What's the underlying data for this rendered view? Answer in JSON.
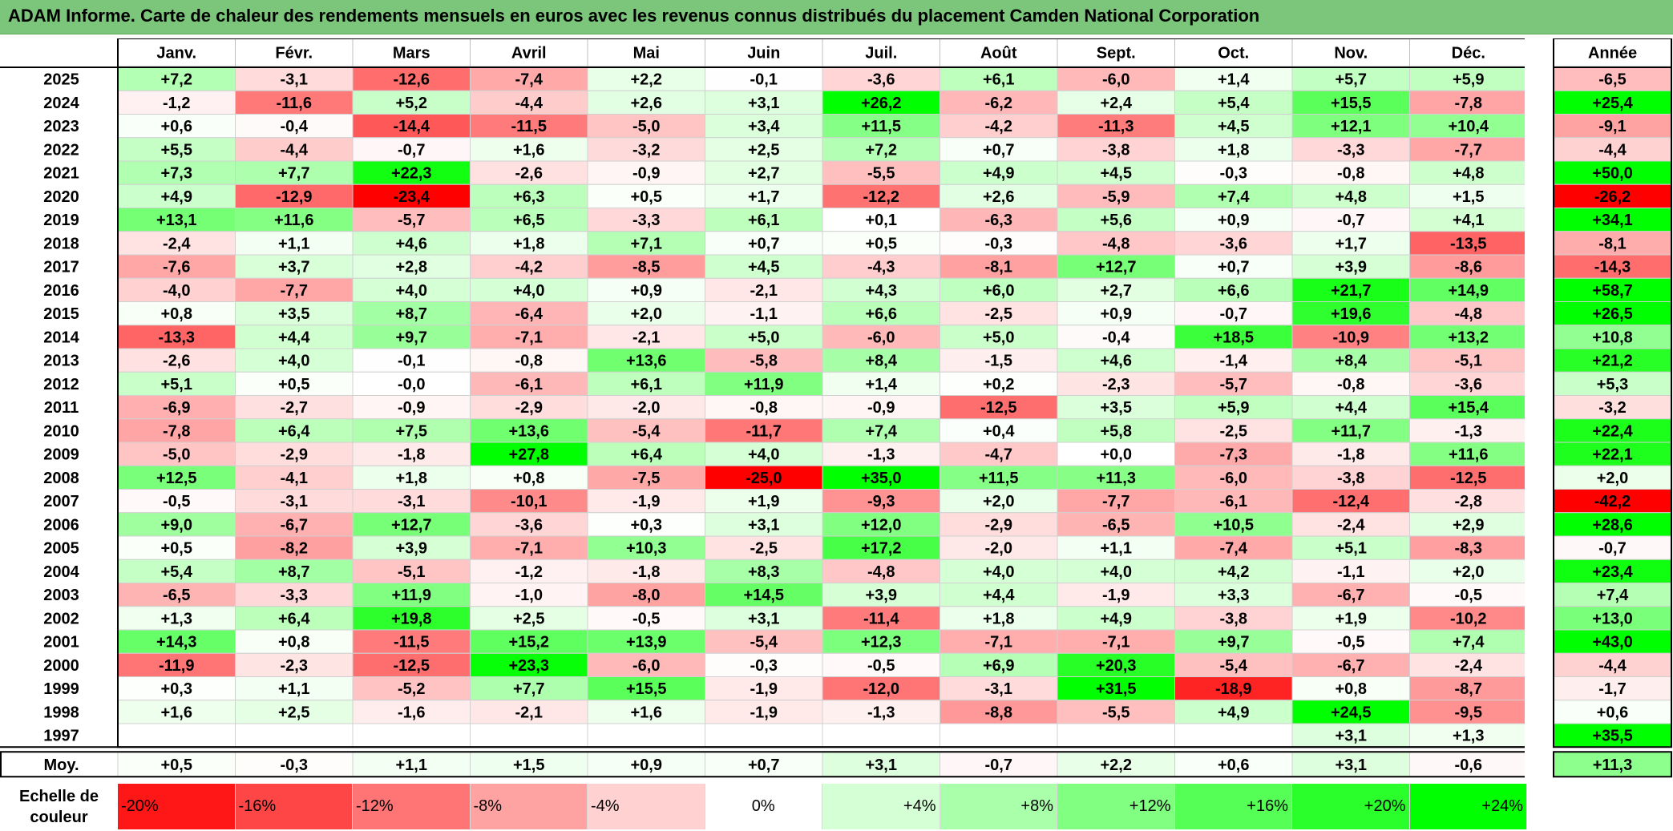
{
  "title": "ADAM Informe. Carte de chaleur des rendements mensuels en euros avec les revenus connus distribués du placement Camden National Corporation",
  "chart_data": {
    "type": "heatmap",
    "title": "ADAM Informe. Carte de chaleur des rendements mensuels en euros avec les revenus connus distribués du placement Camden National Corporation",
    "months": [
      "Janv.",
      "Févr.",
      "Mars",
      "Avril",
      "Mai",
      "Juin",
      "Juil.",
      "Août",
      "Sept.",
      "Oct.",
      "Nov.",
      "Déc."
    ],
    "year_header": "Année",
    "rows": [
      {
        "year": "2025",
        "values": [
          "+7,2",
          "-3,1",
          "-12,6",
          "-7,4",
          "+2,2",
          "-0,1",
          "-3,6",
          "+6,1",
          "-6,0",
          "+1,4",
          "+5,7",
          "+5,9"
        ],
        "annual": "-6,5"
      },
      {
        "year": "2024",
        "values": [
          "-1,2",
          "-11,6",
          "+5,2",
          "-4,4",
          "+2,6",
          "+3,1",
          "+26,2",
          "-6,2",
          "+2,4",
          "+5,4",
          "+15,5",
          "-7,8"
        ],
        "annual": "+25,4"
      },
      {
        "year": "2023",
        "values": [
          "+0,6",
          "-0,4",
          "-14,4",
          "-11,5",
          "-5,0",
          "+3,4",
          "+11,5",
          "-4,2",
          "-11,3",
          "+4,5",
          "+12,1",
          "+10,4"
        ],
        "annual": "-9,1"
      },
      {
        "year": "2022",
        "values": [
          "+5,5",
          "-4,4",
          "-0,7",
          "+1,6",
          "-3,2",
          "+2,5",
          "+7,2",
          "+0,7",
          "-3,8",
          "+1,8",
          "-3,3",
          "-7,7"
        ],
        "annual": "-4,4"
      },
      {
        "year": "2021",
        "values": [
          "+7,3",
          "+7,7",
          "+22,3",
          "-2,6",
          "-0,9",
          "+2,7",
          "-5,5",
          "+4,9",
          "+4,5",
          "-0,3",
          "-0,8",
          "+4,8"
        ],
        "annual": "+50,0"
      },
      {
        "year": "2020",
        "values": [
          "+4,9",
          "-12,9",
          "-23,4",
          "+6,3",
          "+0,5",
          "+1,7",
          "-12,2",
          "+2,6",
          "-5,9",
          "+7,4",
          "+4,8",
          "+1,5"
        ],
        "annual": "-26,2"
      },
      {
        "year": "2019",
        "values": [
          "+13,1",
          "+11,6",
          "-5,7",
          "+6,5",
          "-3,3",
          "+6,1",
          "+0,1",
          "-6,3",
          "+5,6",
          "+0,9",
          "-0,7",
          "+4,1"
        ],
        "annual": "+34,1"
      },
      {
        "year": "2018",
        "values": [
          "-2,4",
          "+1,1",
          "+4,6",
          "+1,8",
          "+7,1",
          "+0,7",
          "+0,5",
          "-0,3",
          "-4,8",
          "-3,6",
          "+1,7",
          "-13,5"
        ],
        "annual": "-8,1"
      },
      {
        "year": "2017",
        "values": [
          "-7,6",
          "+3,7",
          "+2,8",
          "-4,2",
          "-8,5",
          "+4,5",
          "-4,3",
          "-8,1",
          "+12,7",
          "+0,7",
          "+3,9",
          "-8,6"
        ],
        "annual": "-14,3"
      },
      {
        "year": "2016",
        "values": [
          "-4,0",
          "-7,7",
          "+4,0",
          "+4,0",
          "+0,9",
          "-2,1",
          "+4,3",
          "+6,0",
          "+2,7",
          "+6,6",
          "+21,7",
          "+14,9"
        ],
        "annual": "+58,7"
      },
      {
        "year": "2015",
        "values": [
          "+0,8",
          "+3,5",
          "+8,7",
          "-6,4",
          "+2,0",
          "-1,1",
          "+6,6",
          "-2,5",
          "+0,9",
          "-0,7",
          "+19,6",
          "-4,8"
        ],
        "annual": "+26,5"
      },
      {
        "year": "2014",
        "values": [
          "-13,3",
          "+4,4",
          "+9,7",
          "-7,1",
          "-2,1",
          "+5,0",
          "-6,0",
          "+5,0",
          "-0,4",
          "+18,5",
          "-10,9",
          "+13,2"
        ],
        "annual": "+10,8"
      },
      {
        "year": "2013",
        "values": [
          "-2,6",
          "+4,0",
          "-0,1",
          "-0,8",
          "+13,6",
          "-5,8",
          "+8,4",
          "-1,5",
          "+4,6",
          "-1,4",
          "+8,4",
          "-5,1"
        ],
        "annual": "+21,2"
      },
      {
        "year": "2012",
        "values": [
          "+5,1",
          "+0,5",
          "-0,0",
          "-6,1",
          "+6,1",
          "+11,9",
          "+1,4",
          "+0,2",
          "-2,3",
          "-5,7",
          "-0,8",
          "-3,6"
        ],
        "annual": "+5,3"
      },
      {
        "year": "2011",
        "values": [
          "-6,9",
          "-2,7",
          "-0,9",
          "-2,9",
          "-2,0",
          "-0,8",
          "-0,9",
          "-12,5",
          "+3,5",
          "+5,9",
          "+4,4",
          "+15,4"
        ],
        "annual": "-3,2"
      },
      {
        "year": "2010",
        "values": [
          "-7,8",
          "+6,4",
          "+7,5",
          "+13,6",
          "-5,4",
          "-11,7",
          "+7,4",
          "+0,4",
          "+5,8",
          "-2,5",
          "+11,7",
          "-1,3"
        ],
        "annual": "+22,4"
      },
      {
        "year": "2009",
        "values": [
          "-5,0",
          "-2,9",
          "-1,8",
          "+27,8",
          "+6,4",
          "+4,0",
          "-1,3",
          "-4,7",
          "+0,0",
          "-7,3",
          "-1,8",
          "+11,6"
        ],
        "annual": "+22,1"
      },
      {
        "year": "2008",
        "values": [
          "+12,5",
          "-4,1",
          "+1,8",
          "+0,8",
          "-7,5",
          "-25,0",
          "+35,0",
          "+11,5",
          "+11,3",
          "-6,0",
          "-3,8",
          "-12,5"
        ],
        "annual": "+2,0"
      },
      {
        "year": "2007",
        "values": [
          "-0,5",
          "-3,1",
          "-3,1",
          "-10,1",
          "-1,9",
          "+1,9",
          "-9,3",
          "+2,0",
          "-7,7",
          "-6,1",
          "-12,4",
          "-2,8"
        ],
        "annual": "-42,2"
      },
      {
        "year": "2006",
        "values": [
          "+9,0",
          "-6,7",
          "+12,7",
          "-3,6",
          "+0,3",
          "+3,1",
          "+12,0",
          "-2,9",
          "-6,5",
          "+10,5",
          "-2,4",
          "+2,9"
        ],
        "annual": "+28,6"
      },
      {
        "year": "2005",
        "values": [
          "+0,5",
          "-8,2",
          "+3,9",
          "-7,1",
          "+10,3",
          "-2,5",
          "+17,2",
          "-2,0",
          "+1,1",
          "-7,4",
          "+5,1",
          "-8,3"
        ],
        "annual": "-0,7"
      },
      {
        "year": "2004",
        "values": [
          "+5,4",
          "+8,7",
          "-5,1",
          "-1,2",
          "-1,8",
          "+8,3",
          "-4,8",
          "+4,0",
          "+4,0",
          "+4,2",
          "-1,1",
          "+2,0"
        ],
        "annual": "+23,4"
      },
      {
        "year": "2003",
        "values": [
          "-6,5",
          "-3,3",
          "+11,9",
          "-1,0",
          "-8,0",
          "+14,5",
          "+3,9",
          "+4,4",
          "-1,9",
          "+3,3",
          "-6,7",
          "-0,5"
        ],
        "annual": "+7,4"
      },
      {
        "year": "2002",
        "values": [
          "+1,3",
          "+6,4",
          "+19,8",
          "+2,5",
          "-0,5",
          "+3,1",
          "-11,4",
          "+1,8",
          "+4,9",
          "-3,8",
          "+1,9",
          "-10,2"
        ],
        "annual": "+13,0"
      },
      {
        "year": "2001",
        "values": [
          "+14,3",
          "+0,8",
          "-11,5",
          "+15,2",
          "+13,9",
          "-5,4",
          "+12,3",
          "-7,1",
          "-7,1",
          "+9,7",
          "-0,5",
          "+7,4"
        ],
        "annual": "+43,0"
      },
      {
        "year": "2000",
        "values": [
          "-11,9",
          "-2,3",
          "-12,5",
          "+23,3",
          "-6,0",
          "-0,3",
          "-0,5",
          "+6,9",
          "+20,3",
          "-5,4",
          "-6,7",
          "-2,4"
        ],
        "annual": "-4,4"
      },
      {
        "year": "1999",
        "values": [
          "+0,3",
          "+1,1",
          "-5,2",
          "+7,7",
          "+15,5",
          "-1,9",
          "-12,0",
          "-3,1",
          "+31,5",
          "-18,9",
          "+0,8",
          "-8,7"
        ],
        "annual": "-1,7"
      },
      {
        "year": "1998",
        "values": [
          "+1,6",
          "+2,5",
          "-1,6",
          "-2,1",
          "+1,6",
          "-1,9",
          "-1,3",
          "-8,8",
          "-5,5",
          "+4,9",
          "+24,5",
          "-9,5"
        ],
        "annual": "+0,6"
      },
      {
        "year": "1997",
        "values": [
          "",
          "",
          "",
          "",
          "",
          "",
          "",
          "",
          "",
          "",
          "+3,1",
          "+1,3"
        ],
        "annual": "+35,5"
      }
    ],
    "average": {
      "label": "Moy.",
      "values": [
        "+0,5",
        "-0,3",
        "+1,1",
        "+1,5",
        "+0,9",
        "+0,7",
        "+3,1",
        "-0,7",
        "+2,2",
        "+0,6",
        "+3,1",
        "-0,6"
      ],
      "annual": "+11,3"
    },
    "scale": {
      "label_line1": "Echelle de",
      "label_line2": "couleur",
      "steps": [
        {
          "label": "-20%",
          "value": -20
        },
        {
          "label": "-16%",
          "value": -16
        },
        {
          "label": "-12%",
          "value": -12
        },
        {
          "label": "-8%",
          "value": -8
        },
        {
          "label": "-4%",
          "value": -4
        },
        {
          "label": "0%",
          "value": 0
        },
        {
          "label": "+4%",
          "value": 4
        },
        {
          "label": "+8%",
          "value": 8
        },
        {
          "label": "+12%",
          "value": 12
        },
        {
          "label": "+16%",
          "value": 16
        },
        {
          "label": "+20%",
          "value": 20
        },
        {
          "label": "+24%",
          "value": 24
        }
      ]
    },
    "colors": {
      "negative_max": "#ff0000",
      "neutral": "#ffffff",
      "positive_max": "#00ff00",
      "header_bg": "#7cc67c"
    }
  }
}
